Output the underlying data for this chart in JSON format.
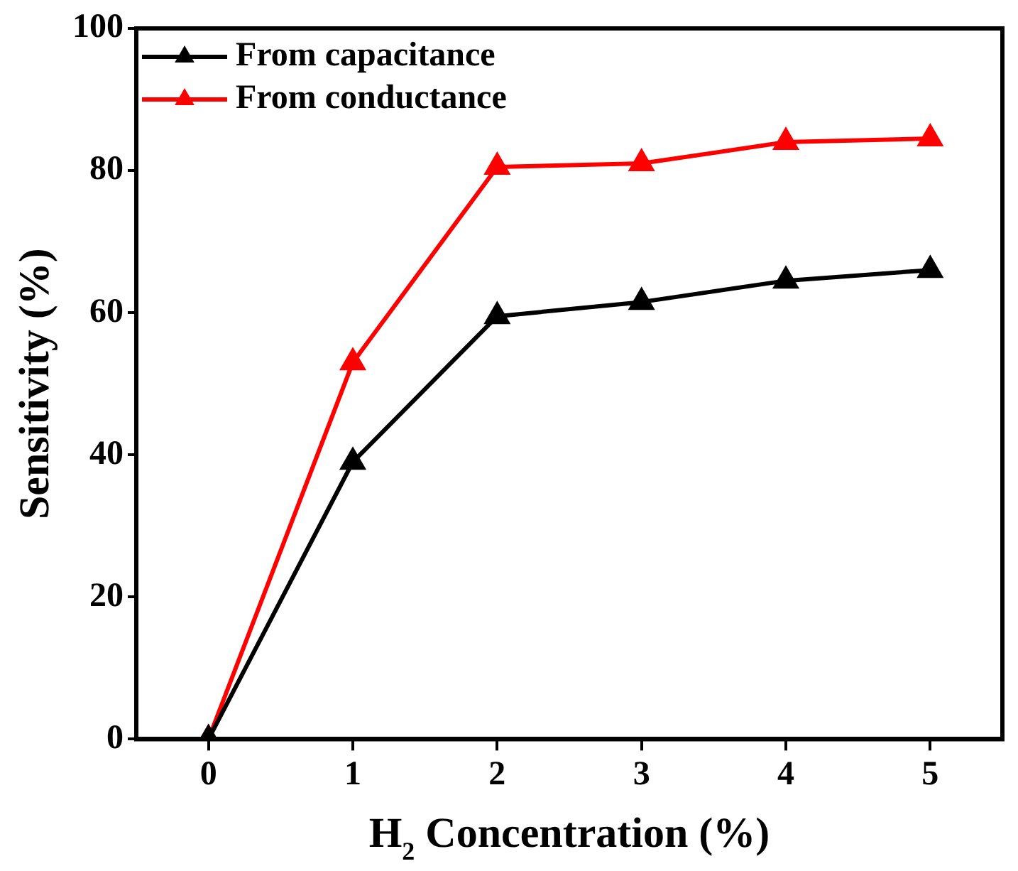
{
  "chart_data": {
    "type": "line",
    "xlabel": "H$_{2}$ Concentration (%)",
    "ylabel": "Sensitivity (%)",
    "x": [
      0,
      1,
      2,
      3,
      4,
      5
    ],
    "series": [
      {
        "name": "From capacitance",
        "color": "#000000",
        "values": [
          0,
          39,
          59.5,
          61.5,
          64.5,
          66
        ]
      },
      {
        "name": "From conductance",
        "color": "#ff0000",
        "values": [
          0,
          53,
          80.5,
          81,
          84,
          84.5
        ]
      }
    ],
    "xlim": [
      -0.5,
      5.5
    ],
    "xticks": [
      0,
      1,
      2,
      3,
      4,
      5
    ],
    "ylim": [
      0,
      100
    ],
    "yticks": [
      0,
      20,
      40,
      60,
      80,
      100
    ],
    "grid": false,
    "legend": "top left",
    "marker": "triangle",
    "line_style": "solid"
  }
}
